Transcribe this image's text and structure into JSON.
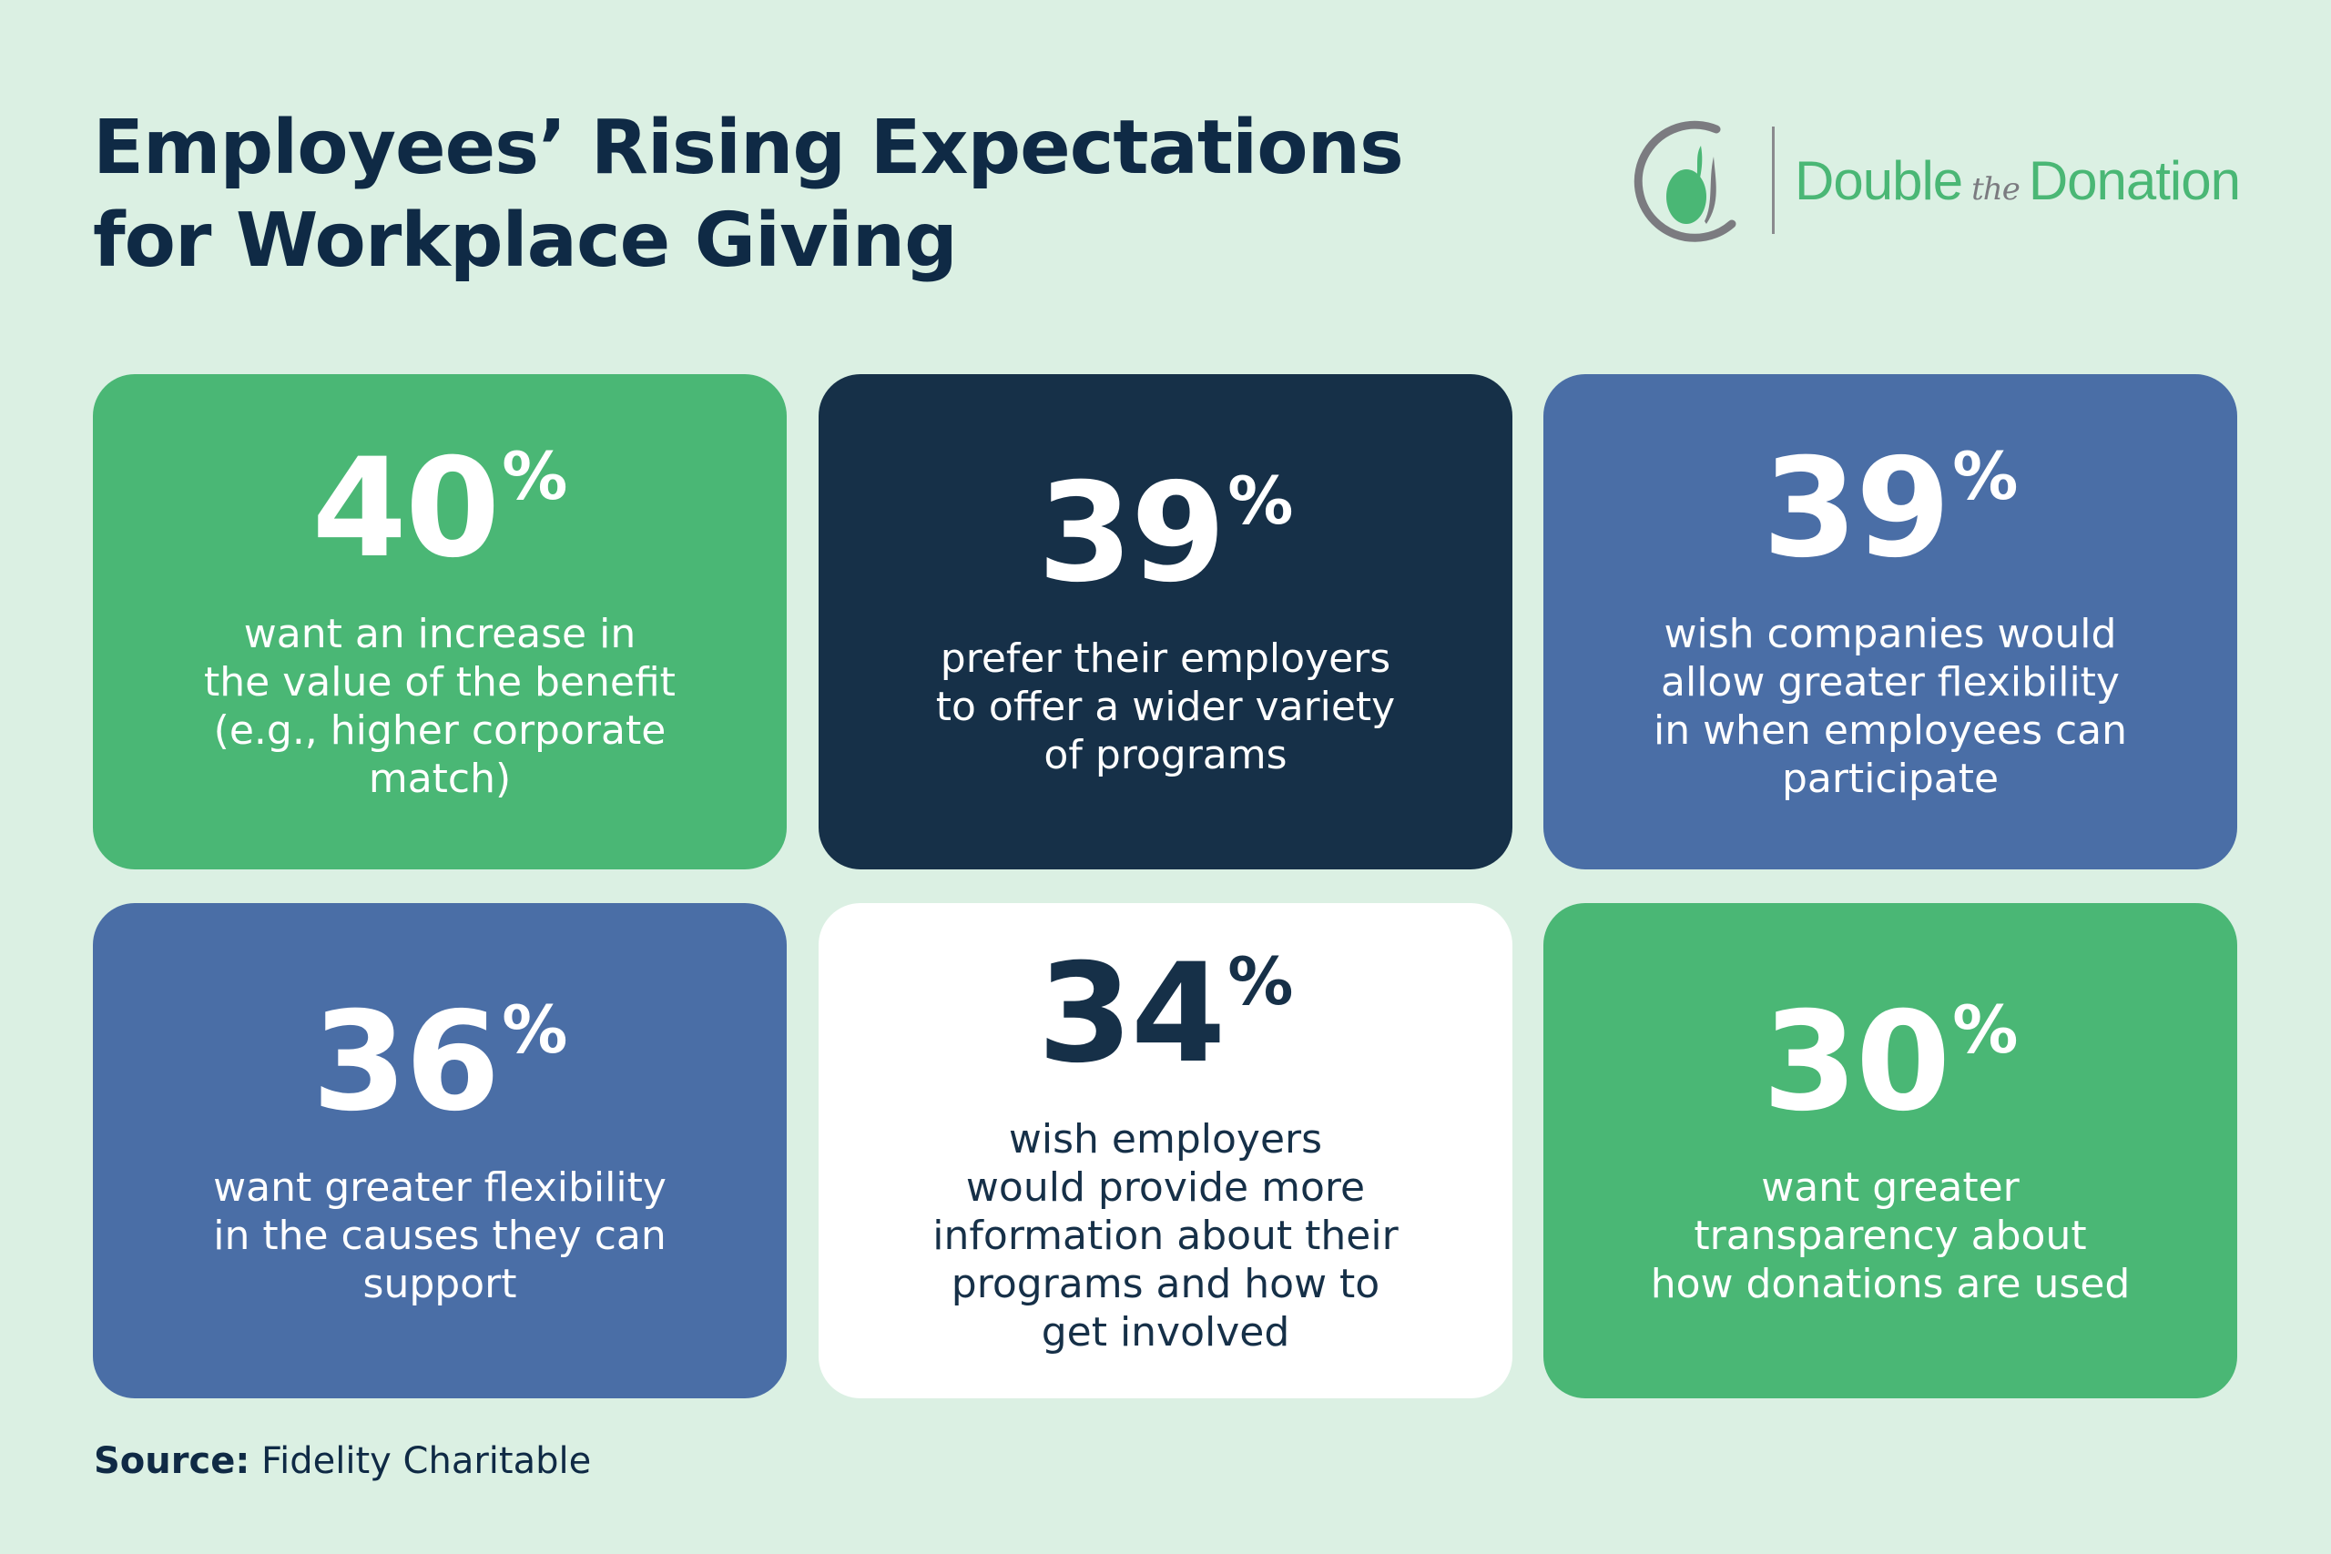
{
  "title": {
    "lines": [
      "Employees’ Rising Expectations",
      "for Workplace Giving"
    ]
  },
  "logo": {
    "word1": "Double",
    "the": "the",
    "word2": "Donation"
  },
  "colors": {
    "background": "#dbf0e3",
    "green": "#4ab775",
    "navy": "#163048",
    "blue": "#4a6ea6",
    "white": "#ffffff"
  },
  "cards": [
    {
      "value": "40",
      "unit": "%",
      "lines": [
        "want an increase in",
        "the value of the benefit",
        "(e.g., higher corporate",
        "match)"
      ]
    },
    {
      "value": "39",
      "unit": "%",
      "lines": [
        "prefer their employers",
        "to offer a wider variety",
        "of programs"
      ]
    },
    {
      "value": "39",
      "unit": "%",
      "lines": [
        "wish companies would",
        "allow greater flexibility",
        "in when employees can",
        "participate"
      ]
    },
    {
      "value": "36",
      "unit": "%",
      "lines": [
        "want greater flexibility",
        "in the causes they can",
        "support"
      ]
    },
    {
      "value": "34",
      "unit": "%",
      "lines": [
        "wish employers",
        "would provide more",
        "information about their",
        "programs and how to",
        "get involved"
      ]
    },
    {
      "value": "30",
      "unit": "%",
      "lines": [
        "want greater",
        "transparency about",
        "how donations are used"
      ]
    }
  ],
  "source": {
    "label": "Source:",
    "text": " Fidelity Charitable"
  }
}
